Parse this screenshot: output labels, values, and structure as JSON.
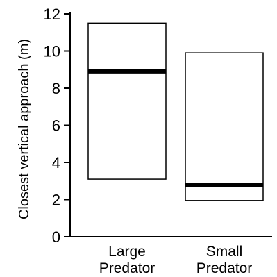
{
  "chart_data": {
    "type": "box",
    "categories": [
      "Large Predator",
      "Small Predator"
    ],
    "category_label_lines": [
      [
        "Large",
        "Predator"
      ],
      [
        "Small",
        "Predator"
      ]
    ],
    "ylabel": "Closest vertical approach (m)",
    "xlabel": "",
    "title": "",
    "ylim": [
      0,
      12
    ],
    "yticks": [
      0,
      2,
      4,
      6,
      8,
      10,
      12
    ],
    "grid": false,
    "boxes": [
      {
        "category": "Large Predator",
        "low": 3.1,
        "median": 8.9,
        "high": 11.5
      },
      {
        "category": "Small Predator",
        "low": 1.95,
        "median": 2.8,
        "high": 9.9
      }
    ],
    "colors": {
      "box_fill": "#ffffff",
      "box_stroke": "#000000",
      "median": "#000000",
      "axis": "#000000"
    }
  }
}
